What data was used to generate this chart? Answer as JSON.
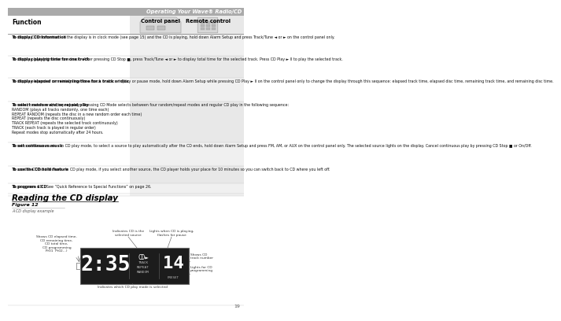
{
  "page_title": "Operating Your Wave® Radio/CD",
  "header_bg": "#b0b0b0",
  "page_bg": "#ffffff",
  "section_title": "Reading the CD display",
  "figure_label": "Figure 12",
  "figure_caption": "A CD display example",
  "display_time": "2:35",
  "display_cd_line1": "CD►",
  "display_track": "TRACK",
  "display_repeat": "REPEAT",
  "display_random": "RANDOM",
  "display_number": "14",
  "display_preset": "PRESET",
  "ann_left": "Shows CD elapsed time,\nCD remaining time,\nCD total time,\nCD programming\nPr01  Pr02...)",
  "ann_top_left": "Indicates CD is the\nselected source",
  "ann_top_right": "Lights when CD is playing,\nflashes for pause",
  "ann_right_top": "Shows CD\ntrack number",
  "ann_right_bot": "Lights for CD\nprogramming",
  "ann_bottom": "Indicates which CD play mode is selected",
  "col_fn": "Function",
  "col_cp": "Control panel",
  "col_rc": "Remote control",
  "rows": [
    {
      "bold": "To display CD information",
      "text": " - If the display is in clock mode (see page 15) and the CD is playing, hold down Alarm Setup and press Track/Tune ◄ or ► on the control panel only."
    },
    {
      "bold": "To display playing time for one track",
      "text": " - After pressing CD Stop ■, press Track/Tune ◄ or ► to display total time for the selected track. Press CD Play ► II to play the selected track."
    },
    {
      "bold": "To display elapsed or remaining time for a track or disc",
      "text": " - In play or pause mode, hold down Alarm Setup while pressing CD Play ► II on the control panel only to change the display through this sequence: elapsed track time, elapsed disc time, remaining track time, and remaining disc time."
    },
    {
      "bold": "To select random and/or repeat play",
      "text": " - Pressing CD Mode selects between four random/repeat modes and regular CD play in the following sequence:\nRANDOM (plays all tracks randomly, one time each)\nREPEAT RANDOM (repeats the disc in a new random order each time)\nREPEAT (repeats the disc continuously)\nTRACK REPEAT (repeats the selected track continuously)\nTRACK (each track is played in regular order)\nRepeat modes stop automatically after 24 hours."
    },
    {
      "bold": "To set continuous music",
      "text": " - In CD play mode, to select a source to play automatically after the CD ends, hold down Alarm Setup and press FM, AM, or AUX on the control panel only. The selected source lights on the display. Cancel continuous play by pressing CD Stop ■ or On/Off."
    },
    {
      "bold": "To use the CD hold feature",
      "text": " - In CD play mode, if you select another source, the CD player holds your place for 10 minutes so you can switch back to CD where you left off."
    },
    {
      "bold": "To program a CD",
      "text": " - See “Quick Reference to Special Functions” on page 26."
    }
  ]
}
